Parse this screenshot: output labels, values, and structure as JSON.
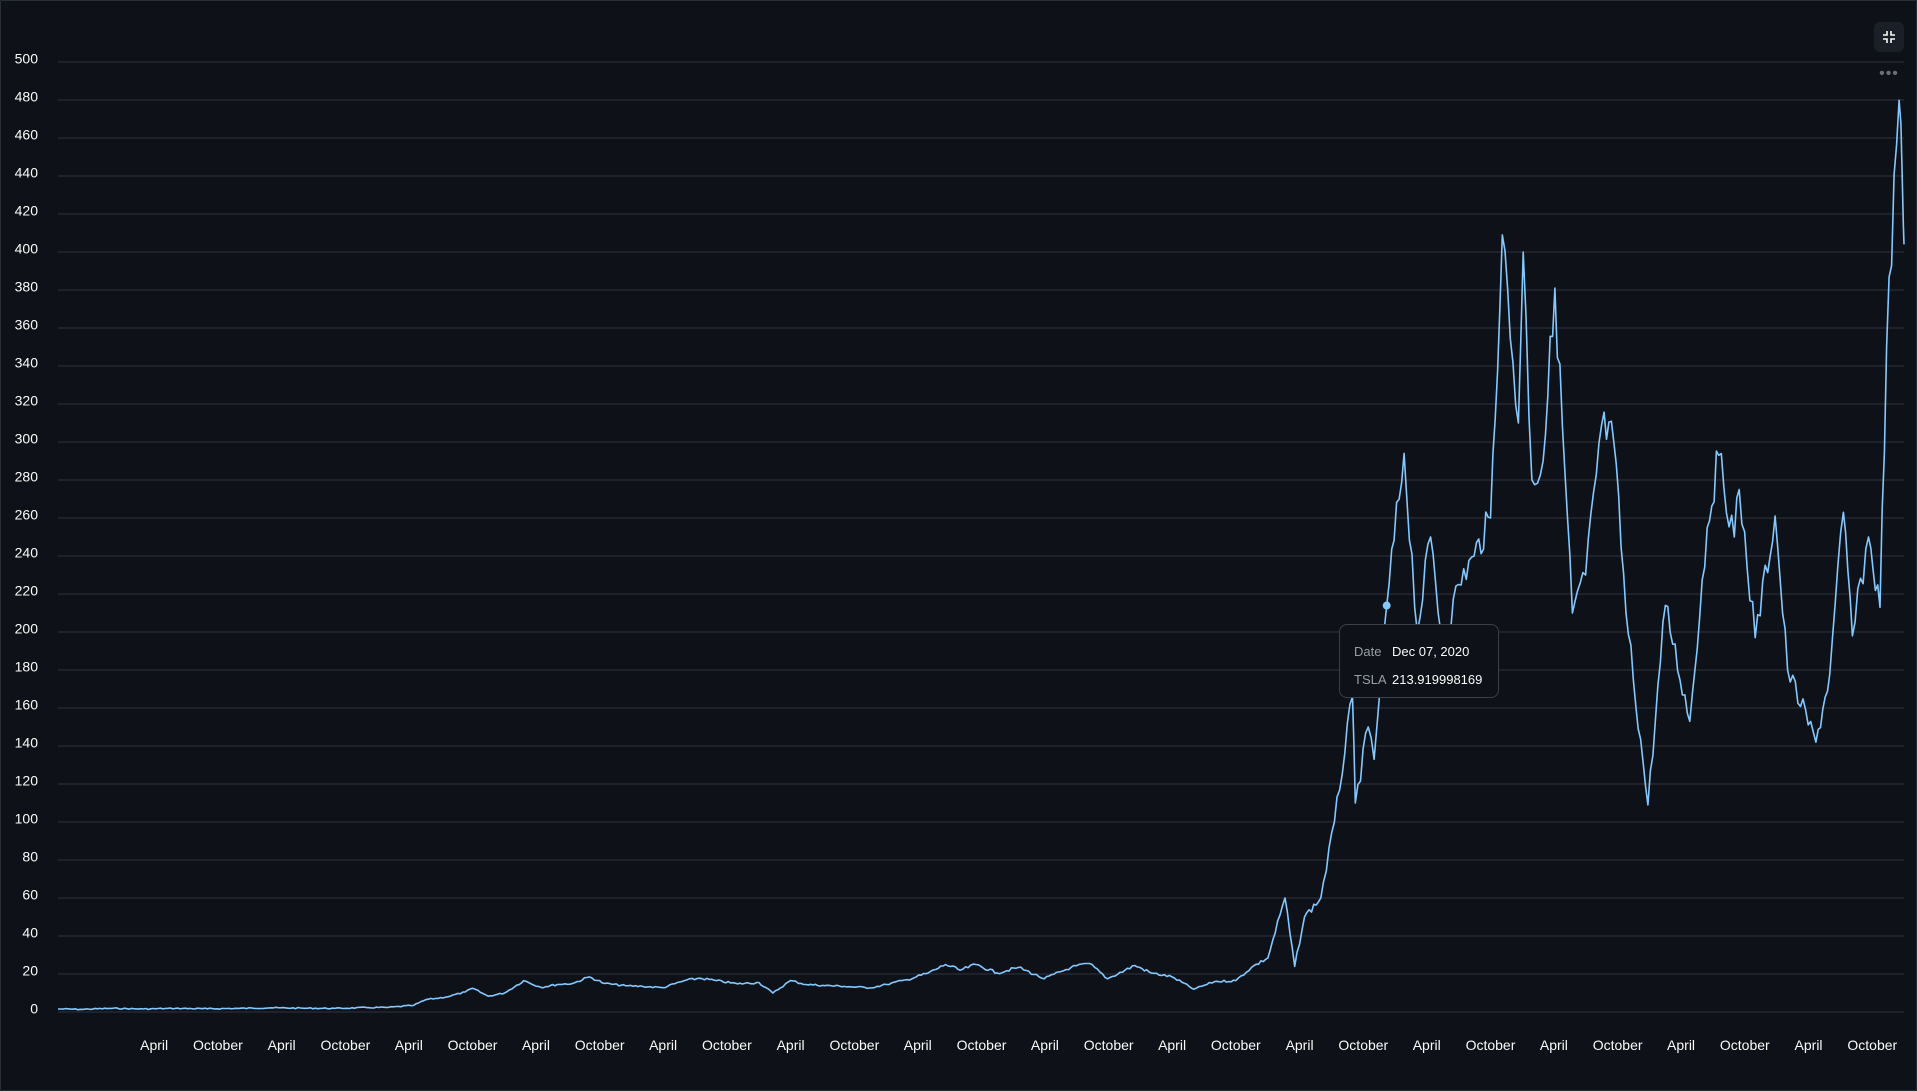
{
  "chart_data": {
    "type": "line",
    "series": [
      {
        "name": "TSLA",
        "points": [
          [
            "2010-06-29",
            1.59
          ],
          [
            "2010-09-01",
            1.4
          ],
          [
            "2010-12-01",
            1.9
          ],
          [
            "2011-03-01",
            1.6
          ],
          [
            "2011-06-01",
            1.9
          ],
          [
            "2011-09-01",
            1.7
          ],
          [
            "2011-12-01",
            1.9
          ],
          [
            "2012-03-01",
            2.2
          ],
          [
            "2012-06-01",
            2.0
          ],
          [
            "2012-09-01",
            1.9
          ],
          [
            "2012-12-01",
            2.3
          ],
          [
            "2013-02-01",
            2.4
          ],
          [
            "2013-04-15",
            3.5
          ],
          [
            "2013-05-20",
            6.5
          ],
          [
            "2013-07-15",
            7.8
          ],
          [
            "2013-09-10",
            10.5
          ],
          [
            "2013-10-01",
            12.5
          ],
          [
            "2013-11-15",
            8.3
          ],
          [
            "2014-01-01",
            10.0
          ],
          [
            "2014-02-25",
            16.5
          ],
          [
            "2014-04-15",
            13.0
          ],
          [
            "2014-06-01",
            14.5
          ],
          [
            "2014-07-15",
            15.0
          ],
          [
            "2014-09-01",
            18.5
          ],
          [
            "2014-10-15",
            15.0
          ],
          [
            "2014-12-15",
            13.8
          ],
          [
            "2015-02-01",
            13.5
          ],
          [
            "2015-04-01",
            12.8
          ],
          [
            "2015-06-01",
            16.5
          ],
          [
            "2015-07-15",
            17.8
          ],
          [
            "2015-09-01",
            16.5
          ],
          [
            "2015-11-01",
            14.8
          ],
          [
            "2016-01-01",
            15.5
          ],
          [
            "2016-02-10",
            10.0
          ],
          [
            "2016-04-01",
            16.5
          ],
          [
            "2016-05-15",
            14.5
          ],
          [
            "2016-07-01",
            14.0
          ],
          [
            "2016-09-01",
            13.5
          ],
          [
            "2016-11-15",
            12.7
          ],
          [
            "2017-01-01",
            14.5
          ],
          [
            "2017-03-01",
            17.0
          ],
          [
            "2017-05-01",
            20.5
          ],
          [
            "2017-06-20",
            25.0
          ],
          [
            "2017-08-01",
            22.0
          ],
          [
            "2017-09-15",
            25.0
          ],
          [
            "2017-11-15",
            20.5
          ],
          [
            "2018-01-15",
            23.5
          ],
          [
            "2018-03-30",
            17.5
          ],
          [
            "2018-06-15",
            23.5
          ],
          [
            "2018-08-07",
            25.5
          ],
          [
            "2018-09-28",
            17.5
          ],
          [
            "2018-12-15",
            24.5
          ],
          [
            "2019-02-01",
            20.5
          ],
          [
            "2019-04-01",
            18.5
          ],
          [
            "2019-06-03",
            12.0
          ],
          [
            "2019-08-01",
            16.0
          ],
          [
            "2019-10-01",
            16.5
          ],
          [
            "2019-11-15",
            23.5
          ],
          [
            "2020-01-01",
            28.5
          ],
          [
            "2020-02-19",
            60.0
          ],
          [
            "2020-03-18",
            24.0
          ],
          [
            "2020-04-15",
            50.0
          ],
          [
            "2020-06-01",
            60.0
          ],
          [
            "2020-07-10",
            100.0
          ],
          [
            "2020-08-31",
            166.0
          ],
          [
            "2020-09-08",
            110.0
          ],
          [
            "2020-10-15",
            150.0
          ],
          [
            "2020-11-01",
            133.0
          ],
          [
            "2020-12-07",
            213.92
          ],
          [
            "2021-01-26",
            294.0
          ],
          [
            "2021-03-05",
            200.0
          ],
          [
            "2021-04-12",
            250.0
          ],
          [
            "2021-05-18",
            190.0
          ],
          [
            "2021-07-01",
            225.0
          ],
          [
            "2021-08-15",
            240.0
          ],
          [
            "2021-10-01",
            260.0
          ],
          [
            "2021-11-04",
            409.0
          ],
          [
            "2021-12-20",
            310.0
          ],
          [
            "2022-01-03",
            400.0
          ],
          [
            "2022-01-28",
            280.0
          ],
          [
            "2022-03-01",
            290.0
          ],
          [
            "2022-04-04",
            381.0
          ],
          [
            "2022-05-24",
            210.0
          ],
          [
            "2022-07-01",
            230.0
          ],
          [
            "2022-08-16",
            309.0
          ],
          [
            "2022-09-20",
            300.0
          ],
          [
            "2022-10-25",
            210.0
          ],
          [
            "2022-12-27",
            109.0
          ],
          [
            "2023-02-15",
            214.0
          ],
          [
            "2023-04-26",
            153.0
          ],
          [
            "2023-06-15",
            255.0
          ],
          [
            "2023-07-18",
            293.0
          ],
          [
            "2023-09-01",
            250.0
          ],
          [
            "2023-09-15",
            275.0
          ],
          [
            "2023-10-31",
            197.0
          ],
          [
            "2023-12-27",
            261.0
          ],
          [
            "2024-02-01",
            180.0
          ],
          [
            "2024-04-22",
            142.0
          ],
          [
            "2024-06-01",
            178.0
          ],
          [
            "2024-07-10",
            263.0
          ],
          [
            "2024-08-05",
            198.0
          ],
          [
            "2024-09-20",
            250.0
          ],
          [
            "2024-10-23",
            213.0
          ],
          [
            "2024-11-11",
            350.0
          ],
          [
            "2024-12-17",
            479.86
          ],
          [
            "2024-12-27",
            431.0
          ],
          [
            "2024-12-31",
            404.0
          ]
        ]
      }
    ],
    "ylim": [
      0,
      500
    ],
    "y_ticks": [
      0,
      20,
      40,
      60,
      80,
      100,
      120,
      140,
      160,
      180,
      200,
      220,
      240,
      260,
      280,
      300,
      320,
      340,
      360,
      380,
      400,
      420,
      440,
      460,
      480,
      500
    ],
    "x_ticks": [
      {
        "date": "2011-04-01",
        "label": "April"
      },
      {
        "date": "2011-10-01",
        "label": "October"
      },
      {
        "date": "2012-04-01",
        "label": "April"
      },
      {
        "date": "2012-10-01",
        "label": "October"
      },
      {
        "date": "2013-04-01",
        "label": "April"
      },
      {
        "date": "2013-10-01",
        "label": "October"
      },
      {
        "date": "2014-04-01",
        "label": "April"
      },
      {
        "date": "2014-10-01",
        "label": "October"
      },
      {
        "date": "2015-04-01",
        "label": "April"
      },
      {
        "date": "2015-10-01",
        "label": "October"
      },
      {
        "date": "2016-04-01",
        "label": "April"
      },
      {
        "date": "2016-10-01",
        "label": "October"
      },
      {
        "date": "2017-04-01",
        "label": "April"
      },
      {
        "date": "2017-10-01",
        "label": "October"
      },
      {
        "date": "2018-04-01",
        "label": "April"
      },
      {
        "date": "2018-10-01",
        "label": "October"
      },
      {
        "date": "2019-04-01",
        "label": "April"
      },
      {
        "date": "2019-10-01",
        "label": "October"
      },
      {
        "date": "2020-04-01",
        "label": "April"
      },
      {
        "date": "2020-10-01",
        "label": "October"
      },
      {
        "date": "2021-04-01",
        "label": "April"
      },
      {
        "date": "2021-10-01",
        "label": "October"
      },
      {
        "date": "2022-04-01",
        "label": "April"
      },
      {
        "date": "2022-10-01",
        "label": "October"
      },
      {
        "date": "2023-04-01",
        "label": "April"
      },
      {
        "date": "2023-10-01",
        "label": "October"
      },
      {
        "date": "2024-04-01",
        "label": "April"
      },
      {
        "date": "2024-10-01",
        "label": "October"
      }
    ],
    "xlim": [
      "2010-06-29",
      "2024-12-31"
    ],
    "grid": true,
    "line_color": "#83c9ff",
    "grid_color": "#31333f",
    "background": "#0e1117",
    "hovered_point": {
      "date": "2020-12-07",
      "value": 213.919998169
    }
  },
  "tooltip": {
    "date_key": "Date",
    "date_value": "Dec 07, 2020",
    "series_key": "TSLA",
    "series_value": "213.919998169"
  },
  "toolbar": {
    "exit_fullscreen_icon": "exit-fullscreen-icon",
    "more_icon": "more-horizontal-icon"
  }
}
